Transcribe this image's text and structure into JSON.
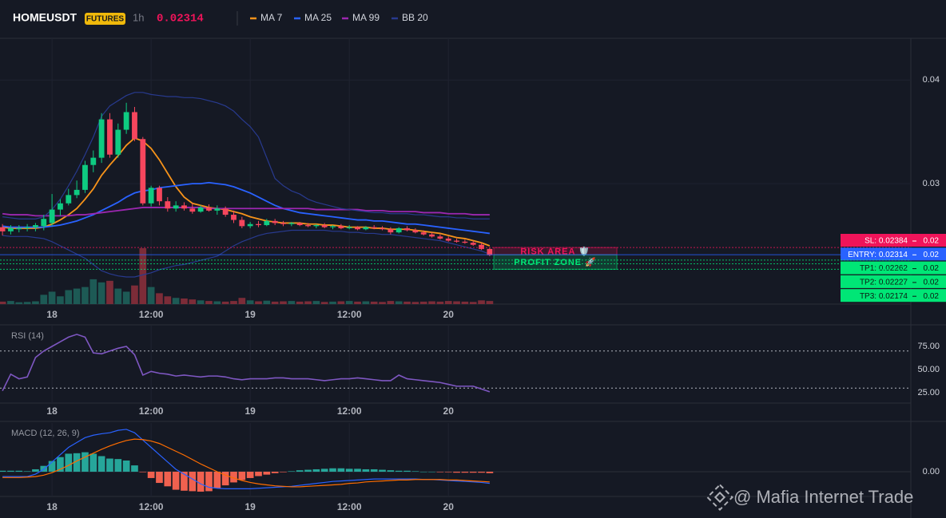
{
  "header": {
    "symbol": "HOMEUSDT",
    "badge": "FUTURES",
    "interval": "1h",
    "price": "0.02314",
    "watermark": "@ Mafia Internet Trade"
  },
  "chart_data": [
    {
      "type": "candlestick",
      "xlim": [
        -0.3,
        110
      ],
      "xticks": [
        {
          "value": 6,
          "label": "18"
        },
        {
          "value": 18,
          "label": "12:00"
        },
        {
          "value": 30,
          "label": "19"
        },
        {
          "value": 42,
          "label": "12:00"
        },
        {
          "value": 54,
          "label": "20"
        }
      ],
      "ylim": [
        0.01838,
        0.04402
      ],
      "yticks": [
        0.03,
        0.04
      ],
      "grid": true,
      "up_color": "#0ecb81",
      "down_color": "#f6465d",
      "open": [
        0.0258,
        0.0254,
        0.0256,
        0.0257,
        0.0258,
        0.0259,
        0.0262,
        0.0275,
        0.0281,
        0.0289,
        0.0294,
        0.0318,
        0.0325,
        0.0362,
        0.0328,
        0.0352,
        0.0369,
        0.0343,
        0.0281,
        0.0296,
        0.0283,
        0.0276,
        0.0279,
        0.0276,
        0.0273,
        0.0277,
        0.0274,
        0.0276,
        0.027,
        0.0265,
        0.0259,
        0.0261,
        0.026,
        0.0264,
        0.0262,
        0.0261,
        0.0262,
        0.026,
        0.0259,
        0.026,
        0.0258,
        0.0259,
        0.0257,
        0.0258,
        0.0256,
        0.0258,
        0.0257,
        0.0256,
        0.0253,
        0.0257,
        0.0255,
        0.0253,
        0.0251,
        0.0249,
        0.0247,
        0.0245,
        0.0244,
        0.0243,
        0.0241,
        0.0237
      ],
      "high": [
        0.0261,
        0.026,
        0.026,
        0.0261,
        0.0262,
        0.027,
        0.029,
        0.0285,
        0.0295,
        0.0303,
        0.0322,
        0.0332,
        0.0368,
        0.0368,
        0.0358,
        0.0378,
        0.0374,
        0.0345,
        0.0298,
        0.0298,
        0.0287,
        0.0283,
        0.0282,
        0.0281,
        0.0279,
        0.028,
        0.0279,
        0.0278,
        0.0274,
        0.0268,
        0.0263,
        0.0264,
        0.0266,
        0.0266,
        0.0264,
        0.0263,
        0.0263,
        0.0262,
        0.0261,
        0.0262,
        0.026,
        0.0261,
        0.026,
        0.0259,
        0.0259,
        0.026,
        0.0259,
        0.0258,
        0.0258,
        0.0259,
        0.0257,
        0.0255,
        0.0253,
        0.0251,
        0.0249,
        0.0247,
        0.0246,
        0.0245,
        0.0243,
        0.0238
      ],
      "low": [
        0.025,
        0.0251,
        0.0253,
        0.0254,
        0.0254,
        0.0255,
        0.0259,
        0.0269,
        0.0279,
        0.0286,
        0.0291,
        0.0311,
        0.032,
        0.0325,
        0.0325,
        0.0348,
        0.0341,
        0.0279,
        0.0278,
        0.0279,
        0.0273,
        0.0273,
        0.0274,
        0.0271,
        0.0272,
        0.0273,
        0.027,
        0.0268,
        0.0262,
        0.0257,
        0.0257,
        0.0258,
        0.0259,
        0.026,
        0.0259,
        0.0259,
        0.0259,
        0.0258,
        0.0257,
        0.0257,
        0.0256,
        0.0256,
        0.0256,
        0.0255,
        0.0255,
        0.0256,
        0.0255,
        0.0251,
        0.0252,
        0.0254,
        0.0252,
        0.025,
        0.0248,
        0.0246,
        0.0244,
        0.0243,
        0.0242,
        0.024,
        0.0236,
        0.023
      ],
      "close": [
        0.0254,
        0.0257,
        0.0257,
        0.0258,
        0.026,
        0.0266,
        0.0275,
        0.0281,
        0.0289,
        0.0294,
        0.0318,
        0.0325,
        0.0362,
        0.0328,
        0.0352,
        0.0369,
        0.0343,
        0.0281,
        0.0296,
        0.0283,
        0.0276,
        0.0279,
        0.0276,
        0.0273,
        0.0277,
        0.0274,
        0.0276,
        0.027,
        0.0265,
        0.0259,
        0.0261,
        0.026,
        0.0264,
        0.0262,
        0.0261,
        0.0262,
        0.026,
        0.0259,
        0.026,
        0.0258,
        0.0259,
        0.0257,
        0.0258,
        0.0256,
        0.0258,
        0.0257,
        0.0256,
        0.0253,
        0.0257,
        0.0255,
        0.0253,
        0.0251,
        0.0249,
        0.0247,
        0.0245,
        0.0244,
        0.0243,
        0.0241,
        0.0237,
        0.0231
      ],
      "volume": [
        8,
        10,
        6,
        7,
        9,
        30,
        40,
        25,
        45,
        50,
        55,
        80,
        70,
        75,
        50,
        40,
        60,
        180,
        55,
        35,
        25,
        20,
        18,
        15,
        12,
        10,
        9,
        8,
        10,
        20,
        12,
        9,
        11,
        8,
        9,
        10,
        8,
        9,
        10,
        7,
        8,
        9,
        10,
        8,
        9,
        8,
        7,
        10,
        9,
        8,
        7,
        8,
        9,
        8,
        10,
        9,
        8,
        7,
        12,
        10
      ],
      "volume_colors": [
        "#1d5a55",
        "#7c2c38"
      ],
      "series": [
        {
          "name": "MA 7",
          "color": "#f7931a",
          "values": [
            0.0258,
            0.0257,
            0.0257,
            0.0257,
            0.0257,
            0.0258,
            0.0261,
            0.0265,
            0.027,
            0.0276,
            0.0285,
            0.0295,
            0.0308,
            0.0318,
            0.0327,
            0.0337,
            0.0344,
            0.0341,
            0.0334,
            0.0323,
            0.031,
            0.0297,
            0.0287,
            0.0281,
            0.0279,
            0.0277,
            0.0276,
            0.0275,
            0.0273,
            0.0271,
            0.0268,
            0.0266,
            0.0264,
            0.0263,
            0.0262,
            0.0262,
            0.0262,
            0.0261,
            0.0261,
            0.026,
            0.026,
            0.0259,
            0.0258,
            0.0258,
            0.0258,
            0.0257,
            0.0257,
            0.0256,
            0.0256,
            0.0256,
            0.0255,
            0.0254,
            0.0253,
            0.0252,
            0.025,
            0.0248,
            0.0247,
            0.0245,
            0.0243,
            0.024
          ]
        },
        {
          "name": "MA 25",
          "color": "#2962ff",
          "values": [
            0.0259,
            0.0258,
            0.0258,
            0.0258,
            0.0258,
            0.0258,
            0.0259,
            0.026,
            0.0262,
            0.0264,
            0.0267,
            0.027,
            0.0274,
            0.0278,
            0.0282,
            0.0287,
            0.0291,
            0.0293,
            0.0294,
            0.0296,
            0.0297,
            0.0298,
            0.0299,
            0.03,
            0.03,
            0.0301,
            0.03,
            0.0299,
            0.0297,
            0.0294,
            0.0291,
            0.0287,
            0.0283,
            0.0279,
            0.0276,
            0.0274,
            0.0272,
            0.0271,
            0.027,
            0.0269,
            0.0268,
            0.0267,
            0.0266,
            0.0265,
            0.0265,
            0.0264,
            0.0264,
            0.0263,
            0.0262,
            0.0261,
            0.0261,
            0.026,
            0.0259,
            0.0258,
            0.0257,
            0.0256,
            0.0255,
            0.0254,
            0.0253,
            0.0252
          ]
        },
        {
          "name": "MA 99",
          "color": "#9c27b0",
          "values": [
            0.0271,
            0.027,
            0.027,
            0.027,
            0.0269,
            0.0269,
            0.0269,
            0.0269,
            0.0269,
            0.027,
            0.027,
            0.0271,
            0.0272,
            0.0273,
            0.0274,
            0.0275,
            0.0276,
            0.0277,
            0.0277,
            0.0277,
            0.0277,
            0.0277,
            0.0277,
            0.0277,
            0.0277,
            0.0276,
            0.0276,
            0.0276,
            0.0276,
            0.0276,
            0.0276,
            0.0276,
            0.0276,
            0.0276,
            0.0276,
            0.0276,
            0.0276,
            0.0276,
            0.0275,
            0.0275,
            0.0275,
            0.0275,
            0.0275,
            0.0275,
            0.0274,
            0.0274,
            0.0274,
            0.0273,
            0.0273,
            0.0273,
            0.0273,
            0.0272,
            0.0272,
            0.0272,
            0.0271,
            0.0271,
            0.0271,
            0.027,
            0.027,
            0.027
          ]
        },
        {
          "name": "BB 20",
          "color": "#283a8f",
          "upper": [
            0.0268,
            0.0267,
            0.0266,
            0.0266,
            0.0266,
            0.0268,
            0.0275,
            0.0285,
            0.0298,
            0.0312,
            0.0328,
            0.0345,
            0.0365,
            0.0375,
            0.038,
            0.0385,
            0.0388,
            0.0388,
            0.0386,
            0.0385,
            0.0384,
            0.0384,
            0.0383,
            0.0383,
            0.0382,
            0.038,
            0.0378,
            0.0375,
            0.037,
            0.0362,
            0.0355,
            0.0345,
            0.0325,
            0.0305,
            0.0298,
            0.0293,
            0.029,
            0.0285,
            0.0282,
            0.028,
            0.0278,
            0.0276,
            0.0275,
            0.0274,
            0.0273,
            0.0272,
            0.0272,
            0.0271,
            0.0271,
            0.0271,
            0.027,
            0.027,
            0.0269,
            0.0268,
            0.0268,
            0.0267,
            0.0267,
            0.0266,
            0.0266,
            0.0266
          ],
          "lower": [
            0.025,
            0.0249,
            0.0249,
            0.0249,
            0.0248,
            0.0247,
            0.0244,
            0.024,
            0.0236,
            0.0232,
            0.0228,
            0.0222,
            0.0216,
            0.0213,
            0.0211,
            0.021,
            0.021,
            0.0212,
            0.0214,
            0.0217,
            0.0219,
            0.0221,
            0.0222,
            0.0224,
            0.0226,
            0.0228,
            0.023,
            0.0235,
            0.024,
            0.0244,
            0.0247,
            0.025,
            0.0252,
            0.0253,
            0.0254,
            0.0255,
            0.0255,
            0.0255,
            0.0255,
            0.0255,
            0.0254,
            0.0254,
            0.0253,
            0.0253,
            0.0252,
            0.0252,
            0.0251,
            0.0251,
            0.025,
            0.0249,
            0.0248,
            0.0247,
            0.0246,
            0.0245,
            0.0243,
            0.0241,
            0.0239,
            0.0237,
            0.0235,
            0.0232
          ]
        }
      ],
      "levels": [
        {
          "label": "SL: 0.02384",
          "value": 0.02384,
          "axis_label": "0.02",
          "color": "#f0145a"
        },
        {
          "label": "ENTRY: 0.02314",
          "value": 0.02314,
          "axis_label": "0.02",
          "color": "#2962ff"
        },
        {
          "label": "TP1: 0.02262",
          "value": 0.02262,
          "axis_label": "0.02",
          "color": "#00e676"
        },
        {
          "label": "TP2: 0.02227",
          "value": 0.02227,
          "axis_label": "0.02",
          "color": "#00e676"
        },
        {
          "label": "TP3: 0.02174",
          "value": 0.02174,
          "axis_label": "0.02",
          "color": "#00e676"
        }
      ],
      "zones": [
        {
          "label": "RISK AREA 🛡️",
          "ylim": [
            0.02314,
            0.02384
          ],
          "color": "#f0145a"
        },
        {
          "label": "PROFIT ZONE 🚀",
          "ylim": [
            0.02174,
            0.02314
          ],
          "color": "#00e676"
        }
      ]
    },
    {
      "type": "line",
      "title": "RSI (14)",
      "color": "#7e57c2",
      "xlim": [
        -0.3,
        110
      ],
      "xticks": [
        {
          "value": 6,
          "label": "18"
        },
        {
          "value": 18,
          "label": "12:00"
        },
        {
          "value": 30,
          "label": "19"
        },
        {
          "value": 42,
          "label": "12:00"
        },
        {
          "value": 54,
          "label": "20"
        }
      ],
      "ylim": [
        13.8,
        97.4
      ],
      "yticks": [
        {
          "value": 25,
          "label": "25.00"
        },
        {
          "value": 50,
          "label": "50.00"
        },
        {
          "value": 75,
          "label": "75.00"
        }
      ],
      "levels": [
        70,
        30
      ],
      "values": [
        27,
        45,
        40,
        42,
        63,
        70,
        75,
        80,
        85,
        88,
        85,
        68,
        67,
        70,
        73,
        75,
        66,
        44,
        48,
        46,
        45,
        43,
        44,
        43,
        42,
        43,
        43,
        42,
        40,
        39,
        40,
        40,
        40,
        41,
        41,
        40,
        40,
        40,
        39,
        38,
        39,
        40,
        40,
        41,
        40,
        39,
        38,
        38,
        44,
        40,
        39,
        38,
        37,
        36,
        34,
        32,
        32,
        32,
        29,
        26
      ]
    },
    {
      "type": "macd",
      "title": "MACD (12, 26, 9)",
      "xlim": [
        -0.3,
        110
      ],
      "xticks": [
        {
          "value": 6,
          "label": "18"
        },
        {
          "value": 18,
          "label": "12:00"
        },
        {
          "value": 30,
          "label": "19"
        },
        {
          "value": 42,
          "label": "12:00"
        },
        {
          "value": 54,
          "label": "20"
        }
      ],
      "ylim": [
        -0.000508,
        0.001
      ],
      "yticks": [
        {
          "value": 0,
          "label": "0.00"
        }
      ],
      "up_color": "#26a69a",
      "down_color": "#f0614f",
      "histogram": [
        2e-05,
        2e-05,
        2e-05,
        1e-05,
        5e-05,
        0.00012,
        0.00022,
        0.0003,
        0.00037,
        0.00038,
        0.0004,
        0.00037,
        0.00032,
        0.00027,
        0.00026,
        0.00023,
        0.00013,
        -1e-05,
        -0.00013,
        -0.00023,
        -0.0003,
        -0.00037,
        -0.00039,
        -0.0004,
        -0.00041,
        -0.0004,
        -0.00034,
        -0.00028,
        -0.00022,
        -0.00017,
        -0.00013,
        -9e-05,
        -6e-05,
        -3e-05,
        -1e-05,
        1e-05,
        3e-05,
        4e-05,
        5e-05,
        6e-05,
        7e-05,
        7e-05,
        6e-05,
        6e-05,
        5e-05,
        5e-05,
        4e-05,
        3e-05,
        2e-05,
        2e-05,
        1e-05,
        0,
        0,
        -1e-05,
        -1e-05,
        -2e-05,
        -2e-05,
        -2e-05,
        -2e-05,
        -3e-05
      ],
      "series": [
        {
          "color": "#2962ff",
          "values": [
            -0.0001,
            -0.0001,
            -0.0001,
            -0.0001,
            -5e-05,
            5e-05,
            0.0002,
            0.00035,
            0.0005,
            0.0006,
            0.0007,
            0.00075,
            0.00078,
            0.0008,
            0.00085,
            0.00087,
            0.0008,
            0.00065,
            0.0005,
            0.00035,
            0.0002,
            5e-05,
            -5e-05,
            -0.00015,
            -0.00025,
            -0.00032,
            -0.00034,
            -0.00035,
            -0.00035,
            -0.00035,
            -0.00035,
            -0.00034,
            -0.00033,
            -0.00032,
            -0.00031,
            -0.0003,
            -0.00028,
            -0.00026,
            -0.00024,
            -0.00022,
            -0.0002,
            -0.00019,
            -0.00018,
            -0.00017,
            -0.00016,
            -0.00015,
            -0.00015,
            -0.00015,
            -0.00015,
            -0.00015,
            -0.00015,
            -0.00016,
            -0.00016,
            -0.00017,
            -0.00018,
            -0.00019,
            -0.0002,
            -0.00021,
            -0.00022,
            -0.00024
          ]
        },
        {
          "color": "#ff6d00",
          "values": [
            -0.00012,
            -0.00012,
            -0.00012,
            -0.00011,
            -0.0001,
            -7e-05,
            -2e-05,
            5e-05,
            0.00013,
            0.00022,
            0.0003,
            0.00038,
            0.00046,
            0.00053,
            0.00059,
            0.00064,
            0.00067,
            0.00066,
            0.00063,
            0.00058,
            0.0005,
            0.00042,
            0.00034,
            0.00025,
            0.00016,
            8e-05,
            0,
            -7e-05,
            -0.00013,
            -0.00018,
            -0.00022,
            -0.00025,
            -0.00027,
            -0.00029,
            -0.0003,
            -0.00031,
            -0.00031,
            -0.0003,
            -0.00029,
            -0.00028,
            -0.00027,
            -0.00026,
            -0.00024,
            -0.00023,
            -0.00021,
            -0.0002,
            -0.00019,
            -0.00018,
            -0.00017,
            -0.00017,
            -0.00016,
            -0.00016,
            -0.00016,
            -0.00016,
            -0.00017,
            -0.00017,
            -0.00018,
            -0.00019,
            -0.0002,
            -0.00021
          ]
        }
      ]
    }
  ]
}
